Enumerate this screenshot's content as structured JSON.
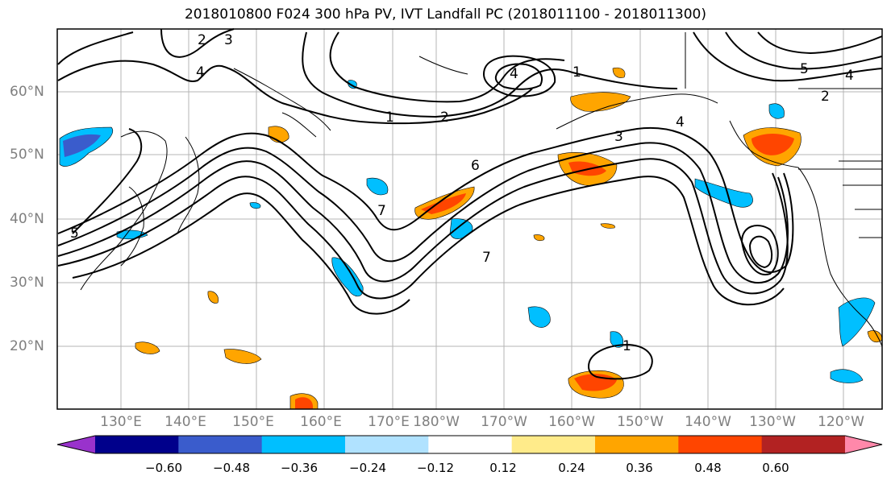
{
  "title": "2018010800 F024 300 hPa PV, IVT Landfall PC (2018011100 - 2018011300)",
  "lat_labels": [
    "60°N",
    "50°N",
    "40°N",
    "30°N",
    "20°N"
  ],
  "lon_labels": [
    "130°E",
    "140°E",
    "150°E",
    "160°E",
    "170°E",
    "180°W",
    "170°W",
    "160°W",
    "150°W",
    "140°W",
    "130°W",
    "120°W"
  ],
  "colorbar": {
    "labels": [
      "−0.60",
      "−0.48",
      "−0.36",
      "−0.24",
      "−0.12",
      "0.12",
      "0.24",
      "0.36",
      "0.48",
      "0.60"
    ],
    "colors": [
      "#9932cc",
      "#00008b",
      "#3a5ccc",
      "#00bfff",
      "#b0e2ff",
      "#ffffff",
      "#ffeb8a",
      "#ffa500",
      "#ff4500",
      "#b22222",
      "#ff88aa"
    ]
  },
  "contour_labels": [
    "1",
    "2",
    "3",
    "4",
    "5",
    "6",
    "7"
  ]
}
